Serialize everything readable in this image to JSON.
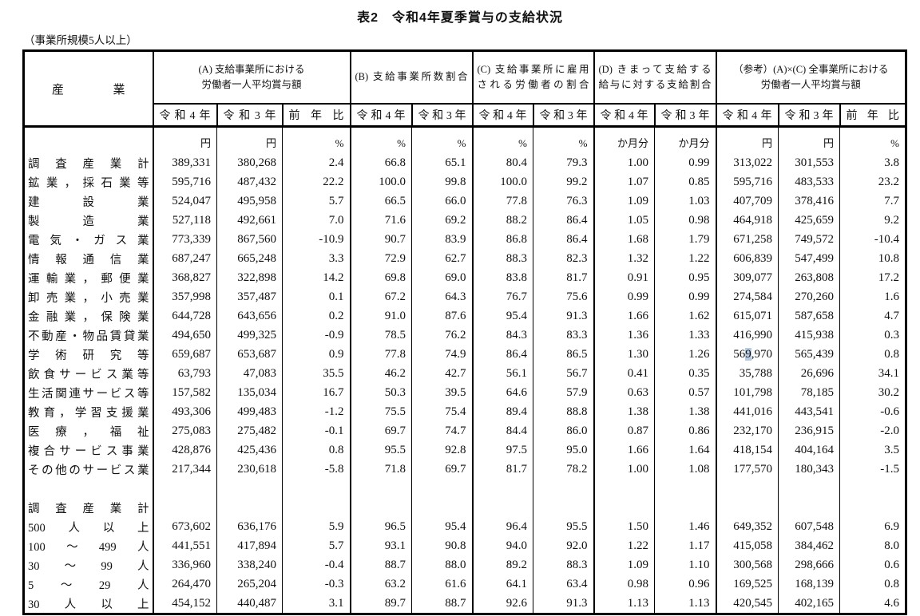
{
  "title": "表2　令和4年夏季賞与の支給状況",
  "subtitle": "（事業所規模5人以上）",
  "table": {
    "industry_header": "産業",
    "year_cols": [
      "令和4年",
      "令和3年",
      "前年比"
    ],
    "groups": [
      {
        "label_lines": [
          "(A) 支給事業所における",
          "労働者一人平均賞与額"
        ],
        "cols": [
          "令和4年",
          "令和3年",
          "前年比"
        ],
        "units": [
          "円",
          "円",
          "%"
        ]
      },
      {
        "label_lines": [
          "(B) 支給事業所数割合"
        ],
        "cols": [
          "令和4年",
          "令和3年"
        ],
        "units": [
          "%",
          "%"
        ]
      },
      {
        "label_lines": [
          "(C) 支給事業所に雇用",
          "される労働者の割合"
        ],
        "cols": [
          "令和4年",
          "令和3年"
        ],
        "units": [
          "%",
          "%"
        ]
      },
      {
        "label_lines": [
          "(D) きまって支給する",
          "給与に対する支給割合"
        ],
        "cols": [
          "令和4年",
          "令和3年"
        ],
        "units": [
          "か月分",
          "か月分"
        ]
      },
      {
        "label_lines": [
          "（参考）(A)×(C) 全事業所における",
          "労働者一人平均賞与額"
        ],
        "cols": [
          "令和4年",
          "令和3年",
          "前年比"
        ],
        "units": [
          "円",
          "円",
          "%"
        ]
      }
    ],
    "rows": [
      {
        "industry": "調査産業計",
        "values": [
          "389,331",
          "380,268",
          "2.4",
          "66.8",
          "65.1",
          "80.4",
          "79.3",
          "1.00",
          "0.99",
          "313,022",
          "301,553",
          "3.8"
        ]
      },
      {
        "industry": "鉱業，採石業等",
        "values": [
          "595,716",
          "487,432",
          "22.2",
          "100.0",
          "99.8",
          "100.0",
          "99.2",
          "1.07",
          "0.85",
          "595,716",
          "483,533",
          "23.2"
        ]
      },
      {
        "industry": "建設業",
        "values": [
          "524,047",
          "495,958",
          "5.7",
          "66.5",
          "66.0",
          "77.8",
          "76.3",
          "1.09",
          "1.03",
          "407,709",
          "378,416",
          "7.7"
        ]
      },
      {
        "industry": "製造業",
        "values": [
          "527,118",
          "492,661",
          "7.0",
          "71.6",
          "69.2",
          "88.2",
          "86.4",
          "1.05",
          "0.98",
          "464,918",
          "425,659",
          "9.2"
        ]
      },
      {
        "industry": "電気・ガス業",
        "values": [
          "773,339",
          "867,560",
          "-10.9",
          "90.7",
          "83.9",
          "86.8",
          "86.4",
          "1.68",
          "1.79",
          "671,258",
          "749,572",
          "-10.4"
        ]
      },
      {
        "industry": "情報通信業",
        "values": [
          "687,247",
          "665,248",
          "3.3",
          "72.9",
          "62.7",
          "88.3",
          "82.3",
          "1.32",
          "1.22",
          "606,839",
          "547,499",
          "10.8"
        ]
      },
      {
        "industry": "運輸業，郵便業",
        "values": [
          "368,827",
          "322,898",
          "14.2",
          "69.8",
          "69.0",
          "83.8",
          "81.7",
          "0.91",
          "0.95",
          "309,077",
          "263,808",
          "17.2"
        ]
      },
      {
        "industry": "卸売業，小売業",
        "values": [
          "357,998",
          "357,487",
          "0.1",
          "67.2",
          "64.3",
          "76.7",
          "75.6",
          "0.99",
          "0.99",
          "274,584",
          "270,260",
          "1.6"
        ]
      },
      {
        "industry": "金融業，保険業",
        "values": [
          "644,728",
          "643,656",
          "0.2",
          "91.0",
          "87.6",
          "95.4",
          "91.3",
          "1.66",
          "1.62",
          "615,071",
          "587,658",
          "4.7"
        ]
      },
      {
        "industry": "不動産・物品賃貸業",
        "values": [
          "494,650",
          "499,325",
          "-0.9",
          "78.5",
          "76.2",
          "84.3",
          "83.3",
          "1.36",
          "1.33",
          "416,990",
          "415,938",
          "0.3"
        ]
      },
      {
        "industry": "学術研究等",
        "values": [
          "659,687",
          "653,687",
          "0.9",
          "77.8",
          "74.9",
          "86.4",
          "86.5",
          "1.30",
          "1.26",
          "569,970",
          "565,439",
          "0.8"
        ]
      },
      {
        "industry": "飲食サービス業等",
        "values": [
          "63,793",
          "47,083",
          "35.5",
          "46.2",
          "42.7",
          "56.1",
          "56.7",
          "0.41",
          "0.35",
          "35,788",
          "26,696",
          "34.1"
        ]
      },
      {
        "industry": "生活関連サービス等",
        "values": [
          "157,582",
          "135,034",
          "16.7",
          "50.3",
          "39.5",
          "64.6",
          "57.9",
          "0.63",
          "0.57",
          "101,798",
          "78,185",
          "30.2"
        ]
      },
      {
        "industry": "教育，学習支援業",
        "values": [
          "493,306",
          "499,483",
          "-1.2",
          "75.5",
          "75.4",
          "89.4",
          "88.8",
          "1.38",
          "1.38",
          "441,016",
          "443,541",
          "-0.6"
        ]
      },
      {
        "industry": "医療，福祉",
        "values": [
          "275,083",
          "275,482",
          "-0.1",
          "69.7",
          "74.7",
          "84.4",
          "86.0",
          "0.87",
          "0.86",
          "232,170",
          "236,915",
          "-2.0"
        ]
      },
      {
        "industry": "複合サービス事業",
        "values": [
          "428,876",
          "425,436",
          "0.8",
          "95.5",
          "92.8",
          "97.5",
          "95.0",
          "1.66",
          "1.64",
          "418,154",
          "404,164",
          "3.5"
        ]
      },
      {
        "industry": "その他のサービス業",
        "values": [
          "217,344",
          "230,618",
          "-5.8",
          "71.8",
          "69.7",
          "81.7",
          "78.2",
          "1.00",
          "1.08",
          "177,570",
          "180,343",
          "-1.5"
        ]
      },
      {
        "industry": "",
        "values": []
      },
      {
        "industry": "調査産業計",
        "values": []
      },
      {
        "industry": "500人以上",
        "values": [
          "673,602",
          "636,176",
          "5.9",
          "96.5",
          "95.4",
          "96.4",
          "95.5",
          "1.50",
          "1.46",
          "649,352",
          "607,548",
          "6.9"
        ]
      },
      {
        "industry": "100～499人",
        "values": [
          "441,551",
          "417,894",
          "5.7",
          "93.1",
          "90.8",
          "94.0",
          "92.0",
          "1.22",
          "1.17",
          "415,058",
          "384,462",
          "8.0"
        ]
      },
      {
        "industry": "30～99人",
        "values": [
          "336,960",
          "338,240",
          "-0.4",
          "88.7",
          "88.0",
          "89.2",
          "88.3",
          "1.09",
          "1.10",
          "300,568",
          "298,666",
          "0.6"
        ]
      },
      {
        "industry": "5～29人",
        "values": [
          "264,470",
          "265,204",
          "-0.3",
          "63.2",
          "61.6",
          "64.1",
          "63.4",
          "0.98",
          "0.96",
          "169,525",
          "168,139",
          "0.8"
        ]
      },
      {
        "industry": "30人以上",
        "values": [
          "454,152",
          "440,487",
          "3.1",
          "89.7",
          "88.7",
          "92.6",
          "91.3",
          "1.13",
          "1.13",
          "420,545",
          "402,165",
          "4.6"
        ]
      }
    ],
    "highlight": {
      "row_index": 10,
      "value_index": 9,
      "char_index": 2,
      "color": "#b8cce4"
    }
  }
}
